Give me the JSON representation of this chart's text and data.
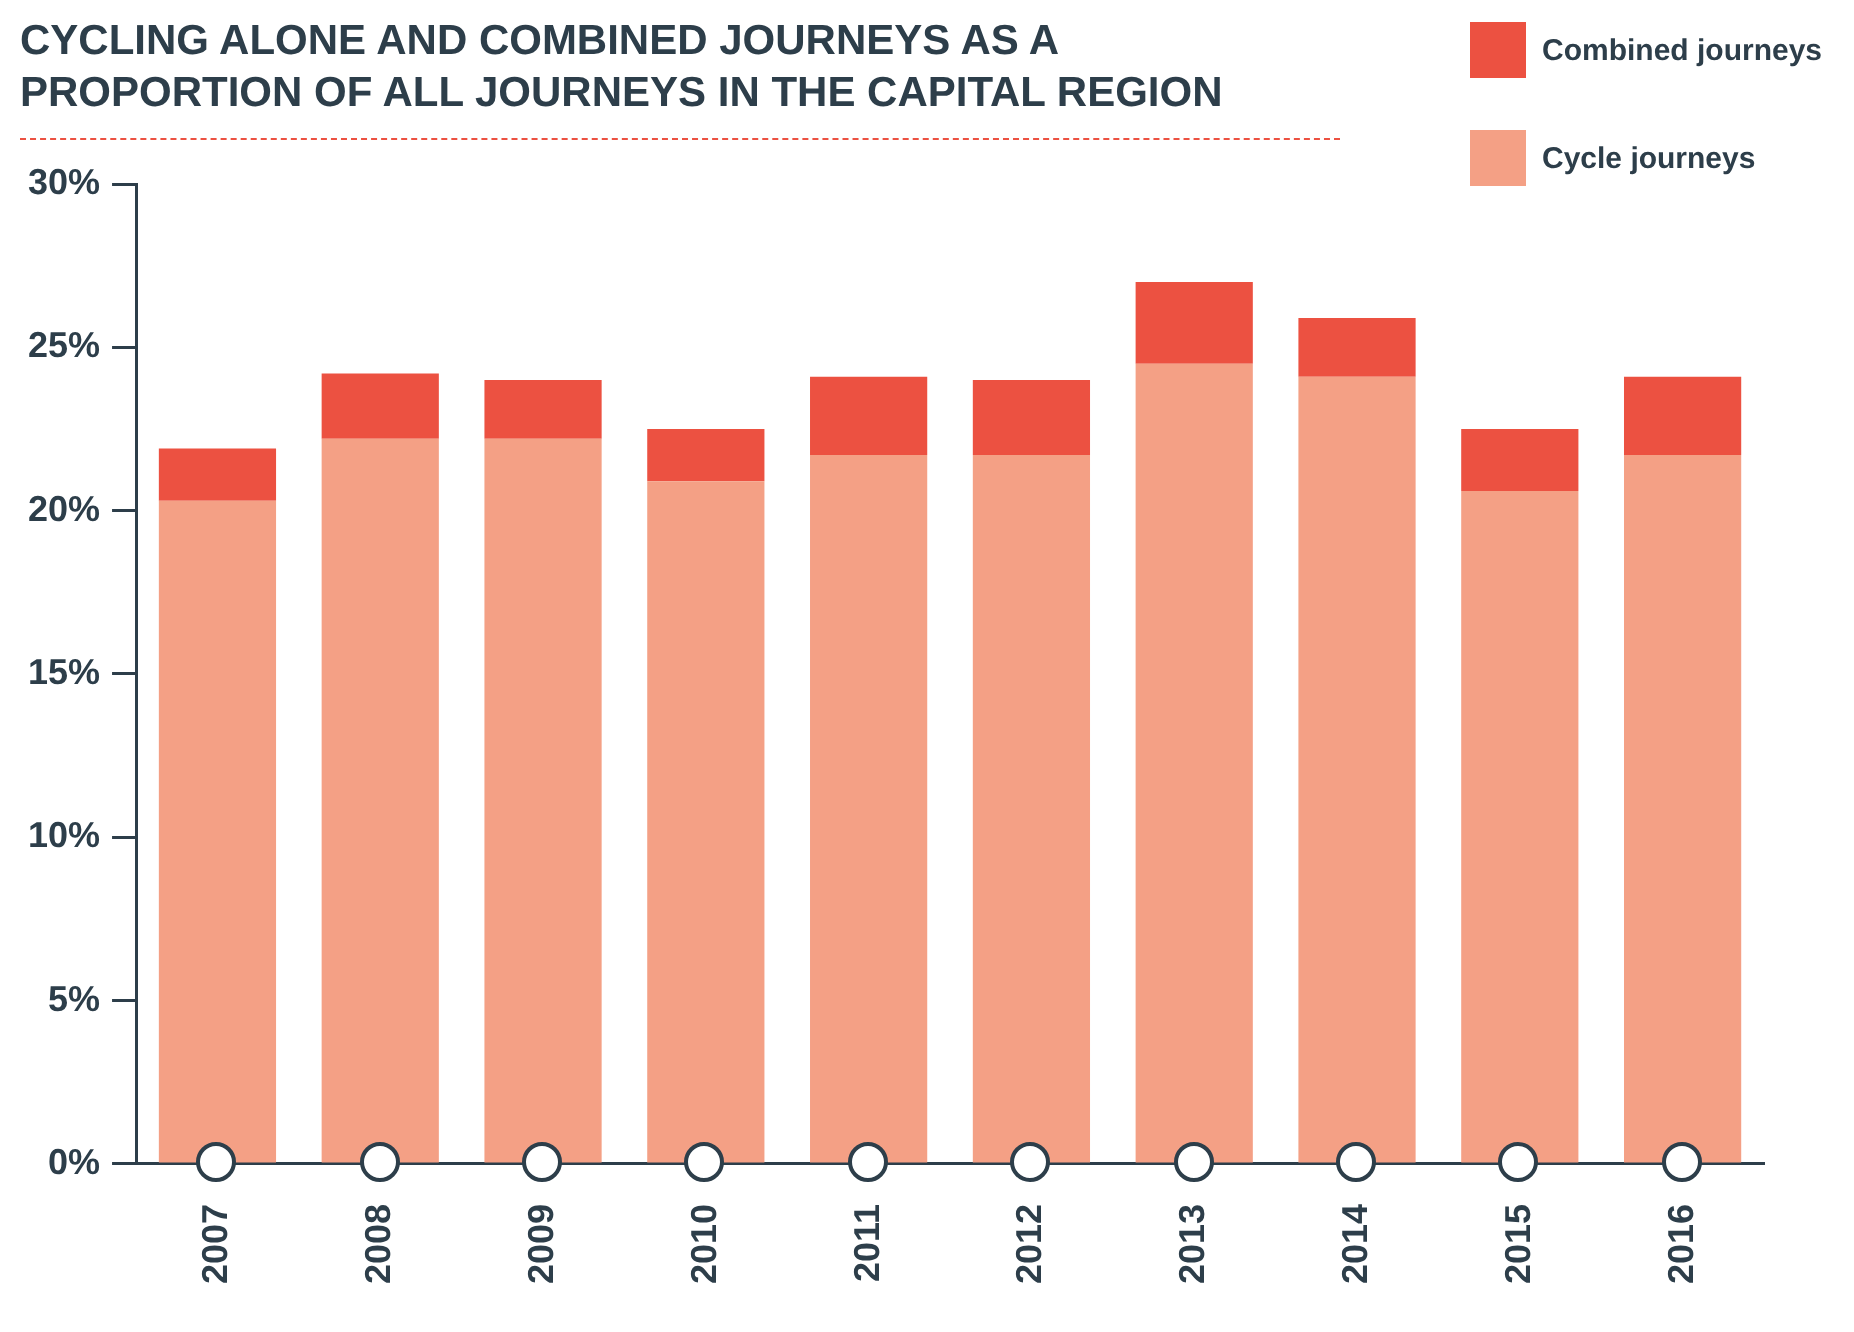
{
  "chart_data": {
    "type": "bar",
    "title": "CYCLING ALONE AND COMBINED JOURNEYS AS A PROPORTION OF ALL JOURNEYS IN THE CAPITAL REGION",
    "categories": [
      "2007",
      "2008",
      "2009",
      "2010",
      "2011",
      "2012",
      "2013",
      "2014",
      "2015",
      "2016"
    ],
    "series": [
      {
        "name": "Cycle journeys",
        "color": "#f4a085",
        "values": [
          20.3,
          22.2,
          22.2,
          20.9,
          21.7,
          21.7,
          24.5,
          24.1,
          20.6,
          21.7
        ]
      },
      {
        "name": "Combined journeys",
        "color": "#ec5141",
        "values": [
          1.6,
          2.0,
          1.8,
          1.6,
          2.4,
          2.3,
          2.5,
          1.8,
          1.9,
          2.4
        ]
      }
    ],
    "stacked": true,
    "ylim": [
      0,
      30
    ],
    "yticks": [
      {
        "value": 0,
        "label": "0%"
      },
      {
        "value": 5,
        "label": "5%"
      },
      {
        "value": 10,
        "label": "10%"
      },
      {
        "value": 15,
        "label": "15%"
      },
      {
        "value": 20,
        "label": "20%"
      },
      {
        "value": 25,
        "label": "25%"
      },
      {
        "value": 30,
        "label": "30%"
      }
    ],
    "grid": false,
    "legend": "top right"
  }
}
